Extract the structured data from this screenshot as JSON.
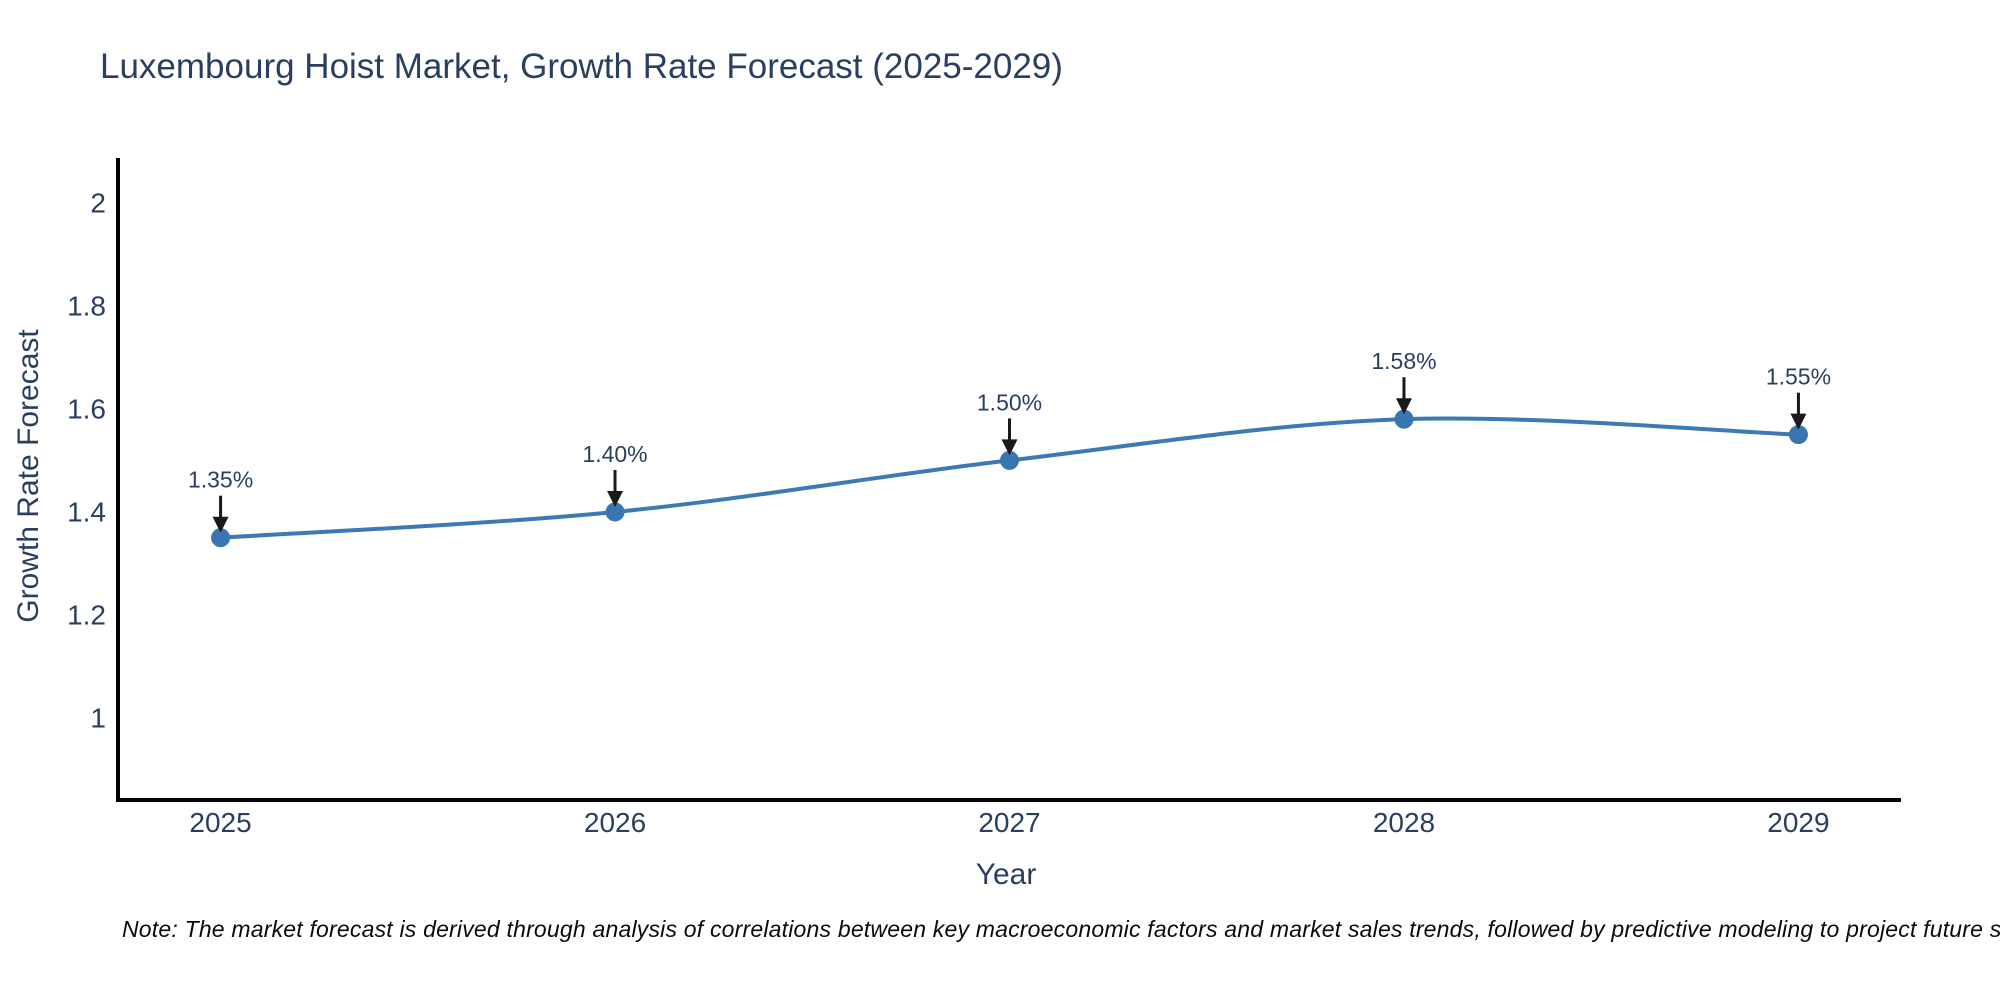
{
  "title": "Luxembourg Hoist Market, Growth Rate Forecast (2025-2029)",
  "note": "Note: The market forecast is derived through analysis of correlations between key macroeconomic factors and market sales trends, followed by predictive modeling to project future sales",
  "chart_data": {
    "type": "line",
    "title": "Luxembourg Hoist Market, Growth Rate Forecast (2025-2029)",
    "xlabel": "Year",
    "ylabel": "Growth Rate Forecast",
    "x": [
      2025,
      2026,
      2027,
      2028,
      2029
    ],
    "series": [
      {
        "name": "Growth Rate Forecast",
        "values": [
          1.35,
          1.4,
          1.5,
          1.58,
          1.55
        ]
      }
    ],
    "point_labels": [
      "1.35%",
      "1.40%",
      "1.50%",
      "1.58%",
      "1.55%"
    ],
    "xticks": [
      2025,
      2026,
      2027,
      2028,
      2029
    ],
    "xtick_labels": [
      "2025",
      "2026",
      "2027",
      "2028",
      "2029"
    ],
    "yticks": [
      1,
      1.2,
      1.4,
      1.6,
      1.8,
      2
    ],
    "ytick_labels": [
      "1",
      "1.2",
      "1.4",
      "1.6",
      "1.8",
      "2"
    ],
    "xlim": [
      2024.74,
      2029.26
    ],
    "ylim": [
      0.841,
      2.083
    ],
    "grid": false,
    "legend": false,
    "line_color": "#3e79b4",
    "marker_color": "#3776ae",
    "axis_color": "#000000",
    "text_color": "#2a3f5f",
    "annotation_color": "#2a3f5f",
    "arrow_color": "#1a1a1a",
    "background_color": "#ffffff"
  }
}
